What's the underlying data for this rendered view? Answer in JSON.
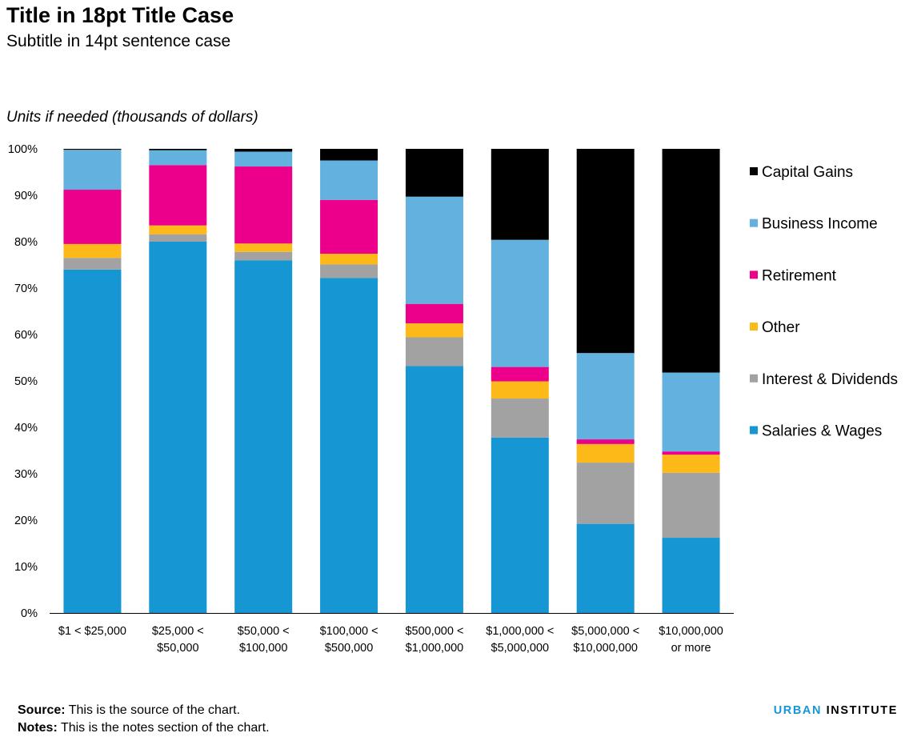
{
  "title": "Title in 18pt Title Case",
  "subtitle": "Subtitle in 14pt sentence case",
  "units_label": "Units if needed (thousands of dollars)",
  "footer": {
    "source_label": "Source:",
    "source_text": " This is the source of the chart.",
    "notes_label": "Notes:",
    "notes_text": " This is the notes section of the chart."
  },
  "logo": {
    "part1": "URBAN",
    "part2": " INSTITUTE"
  },
  "chart_data": {
    "type": "bar",
    "stacked": true,
    "categories": [
      [
        "$1 < $25,000"
      ],
      [
        "$25,000 <",
        "$50,000"
      ],
      [
        "$50,000 <",
        "$100,000"
      ],
      [
        "$100,000 <",
        "$500,000"
      ],
      [
        "$500,000 <",
        "$1,000,000"
      ],
      [
        "$1,000,000 <",
        "$5,000,000"
      ],
      [
        "$5,000,000 <",
        "$10,000,000"
      ],
      [
        "$10,000,000",
        "or more"
      ]
    ],
    "ylim": [
      0,
      100
    ],
    "yticks": [
      "0%",
      "10%",
      "20%",
      "30%",
      "40%",
      "50%",
      "60%",
      "70%",
      "80%",
      "90%",
      "100%"
    ],
    "ytick_values": [
      0,
      10,
      20,
      30,
      40,
      50,
      60,
      70,
      80,
      90,
      100
    ],
    "legend_position": "right",
    "series": [
      {
        "name": "Salaries & Wages",
        "color": "#1696d2",
        "values": [
          74.0,
          80.0,
          76.0,
          72.2,
          53.2,
          37.8,
          19.2,
          16.2
        ]
      },
      {
        "name": "Interest & Dividends",
        "color": "#a2a2a2",
        "values": [
          2.5,
          1.6,
          1.8,
          2.9,
          6.2,
          8.4,
          13.2,
          14.0
        ]
      },
      {
        "name": "Other",
        "color": "#fdb917",
        "values": [
          3.0,
          1.9,
          1.8,
          2.3,
          3.0,
          3.7,
          4.0,
          3.9
        ]
      },
      {
        "name": "Retirement",
        "color": "#ec008b",
        "values": [
          11.7,
          13.0,
          16.6,
          11.6,
          4.2,
          3.1,
          1.0,
          0.7
        ]
      },
      {
        "name": "Business Income",
        "color": "#63b1de",
        "values": [
          8.6,
          3.2,
          3.2,
          8.5,
          23.1,
          27.4,
          18.6,
          17.0
        ]
      },
      {
        "name": "Capital Gains",
        "color": "#000000",
        "values": [
          0.2,
          0.3,
          0.6,
          2.5,
          10.3,
          19.6,
          44.0,
          48.2
        ]
      }
    ],
    "legend_order": [
      "Capital Gains",
      "Business Income",
      "Retirement",
      "Other",
      "Interest & Dividends",
      "Salaries & Wages"
    ]
  }
}
